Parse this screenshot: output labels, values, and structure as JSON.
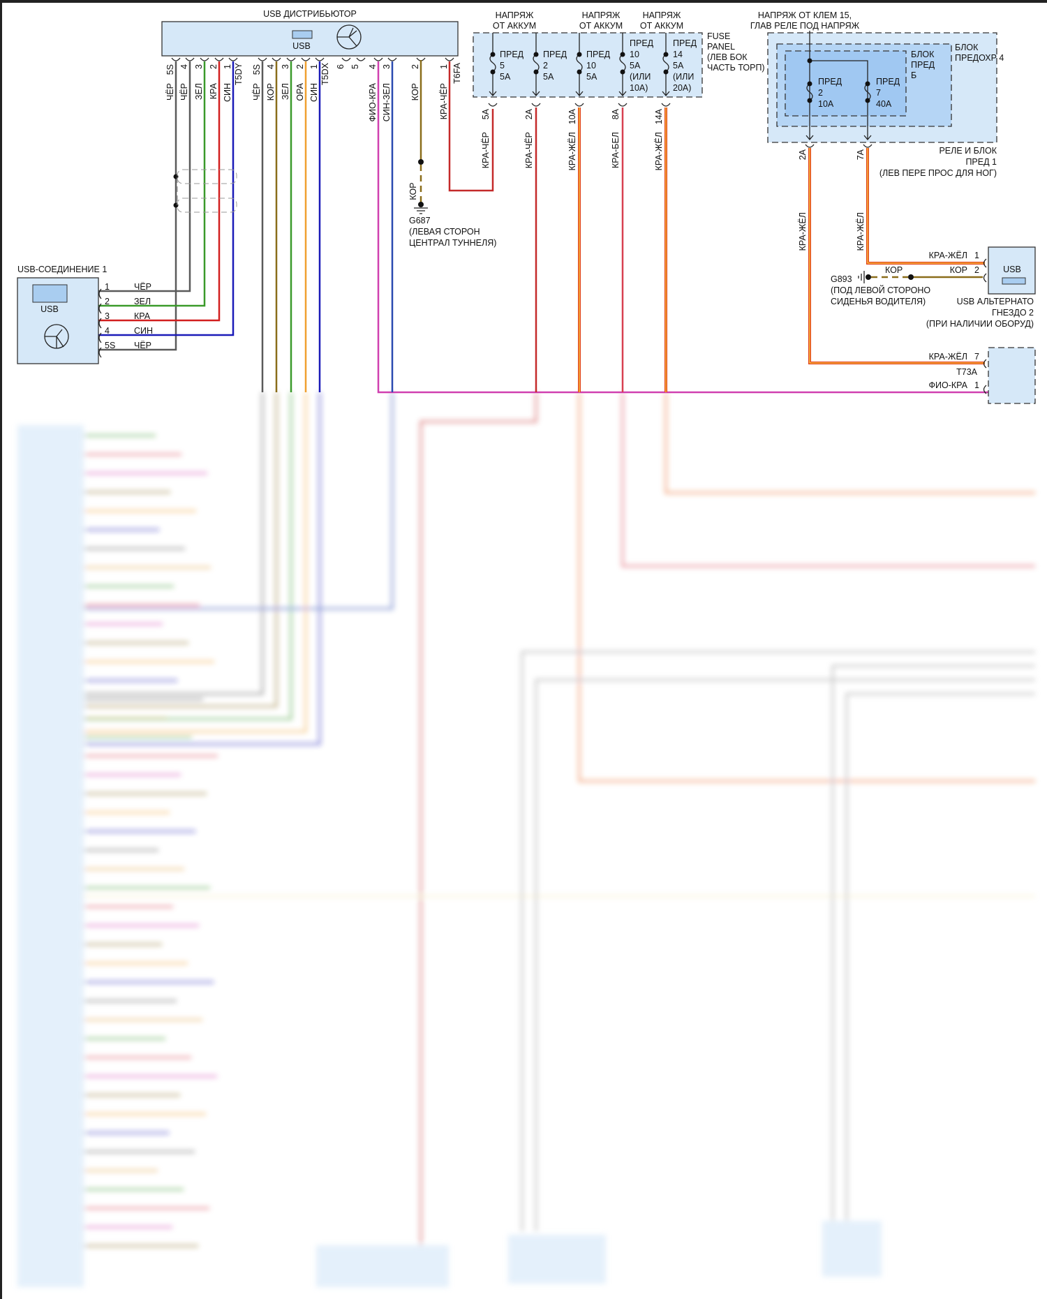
{
  "distributor": {
    "title": "USB ДИСТРИБЬЮТОР",
    "usb_label": "USB",
    "connector_t5dy": "T5DY",
    "connector_t5dx": "T5DX",
    "connector_t6fa": "T6FA",
    "pins_t5dy": [
      {
        "pin": "5S",
        "color": "ЧЁР",
        "hex": "#5a5a5a"
      },
      {
        "pin": "4",
        "color": "ЧЁР",
        "hex": "#5a5a5a"
      },
      {
        "pin": "3",
        "color": "ЗЕЛ",
        "hex": "#3a9a2a"
      },
      {
        "pin": "2",
        "color": "КРА",
        "hex": "#d21f1f"
      },
      {
        "pin": "1",
        "color": "СИН",
        "hex": "#1a1ab8"
      }
    ],
    "pins_t5dx": [
      {
        "pin": "5S",
        "color": "ЧЁР",
        "hex": "#5a5a5a"
      },
      {
        "pin": "4",
        "color": "КОР",
        "hex": "#8a6d1a"
      },
      {
        "pin": "3",
        "color": "ЗЕЛ",
        "hex": "#3a9a2a"
      },
      {
        "pin": "2",
        "color": "ОРА",
        "hex": "#f0a030"
      },
      {
        "pin": "1",
        "color": "СИН",
        "hex": "#1a1ab8"
      }
    ],
    "pins_t6fa": [
      {
        "pin": "6",
        "color": "",
        "hex": ""
      },
      {
        "pin": "5",
        "color": "",
        "hex": ""
      },
      {
        "pin": "4",
        "color": "ФИО-КРА",
        "hex": "#d040b0"
      },
      {
        "pin": "3",
        "color": "СИН-ЗЕЛ",
        "hex": "#2a4ab0"
      },
      {
        "pin": "2",
        "color": "КОР",
        "hex": "#8a6d1a"
      },
      {
        "pin": "1",
        "color": "КРА-ЧЁР",
        "hex": "#c42a2a"
      }
    ]
  },
  "usb_connection_1": {
    "title": "USB-СОЕДИНЕНИЕ 1",
    "usb_label": "USB",
    "pins": [
      {
        "pin": "1",
        "color": "ЧЁР"
      },
      {
        "pin": "2",
        "color": "ЗЕЛ"
      },
      {
        "pin": "3",
        "color": "КРА"
      },
      {
        "pin": "4",
        "color": "СИН"
      },
      {
        "pin": "5S",
        "color": "ЧЁР"
      }
    ]
  },
  "ground_g687": {
    "wire": "КОР",
    "lines": [
      "G687",
      "(ЛЕВАЯ СТОРОН",
      "ЦЕНТРАЛ ТУННЕЛЯ)"
    ]
  },
  "fuse_panel": {
    "sources": [
      "НАПРЯЖ",
      "ОТ АККУМ"
    ],
    "label": [
      "FUSE",
      "PANEL",
      "(ЛЕВ БОК",
      "ЧАСТЬ ТОРП)"
    ],
    "fuses": [
      {
        "lines": [
          "ПРЕД",
          "5",
          "5A"
        ],
        "out_pin": "5A",
        "wire": "КРА-ЧЁР",
        "hex": "#c42a2a"
      },
      {
        "lines": [
          "ПРЕД",
          "2",
          "5A"
        ],
        "out_pin": "2A",
        "wire": "КРА-ЧЁР",
        "hex": "#c42a2a"
      },
      {
        "lines": [
          "ПРЕД",
          "10",
          "5A"
        ],
        "out_pin": "10A",
        "wire": "КРА-ЖЁЛ",
        "hex": "#e8641a"
      },
      {
        "lines": [
          "ПРЕД",
          "10",
          "5A",
          "(ИЛИ",
          "10A)"
        ],
        "out_pin": "8A",
        "wire": "КРА-БЕЛ",
        "hex": "#d84050"
      },
      {
        "lines": [
          "ПРЕД",
          "14",
          "5A",
          "(ИЛИ",
          "20A)"
        ],
        "out_pin": "14A",
        "wire": "КРА-ЖЁЛ",
        "hex": "#e8641a"
      }
    ]
  },
  "relay_block": {
    "source": [
      "НАПРЯЖ ОТ КЛЕМ 15,",
      "ГЛАВ РЕЛЕ ПОД НАПРЯЖ"
    ],
    "inner_label": [
      "БЛОК",
      "ПРЕД",
      "Б"
    ],
    "middle_label": [
      "БЛОК",
      "ПРЕДОХР 4"
    ],
    "outer_label": [
      "РЕЛЕ И БЛОК",
      "ПРЕД 1",
      "(ЛЕВ ПЕРЕ ПРОС ДЛЯ НОГ)"
    ],
    "fuses": [
      {
        "lines": [
          "ПРЕД",
          "2",
          "10A"
        ],
        "out_pin": "2A",
        "wire": "КРА-ЖЁЛ"
      },
      {
        "lines": [
          "ПРЕД",
          "7",
          "40A"
        ],
        "out_pin": "7A",
        "wire": "КРА-ЖЁЛ"
      }
    ]
  },
  "usb_alt_socket": {
    "usb_label": "USB",
    "pin1": {
      "color": "КРА-ЖЁЛ",
      "pin": "1"
    },
    "pin2": {
      "color": "КОР",
      "pin": "2"
    },
    "label": [
      "USB АЛЬТЕРНАТО",
      "ГНЕЗДО 2",
      "(ПРИ НАЛИЧИИ ОБОРУД)"
    ]
  },
  "ground_g893": {
    "wire": "КОР",
    "lines": [
      "G893",
      "(ПОД ЛЕВОЙ СТОРОНО",
      "СИДЕНЬЯ ВОДИТЕЛЯ)"
    ]
  },
  "t73a": {
    "connector": "T73A",
    "pin7": {
      "color": "КРА-ЖЁЛ",
      "pin": "7"
    },
    "pin1": {
      "color": "ФИО-КРА",
      "pin": "1"
    }
  }
}
